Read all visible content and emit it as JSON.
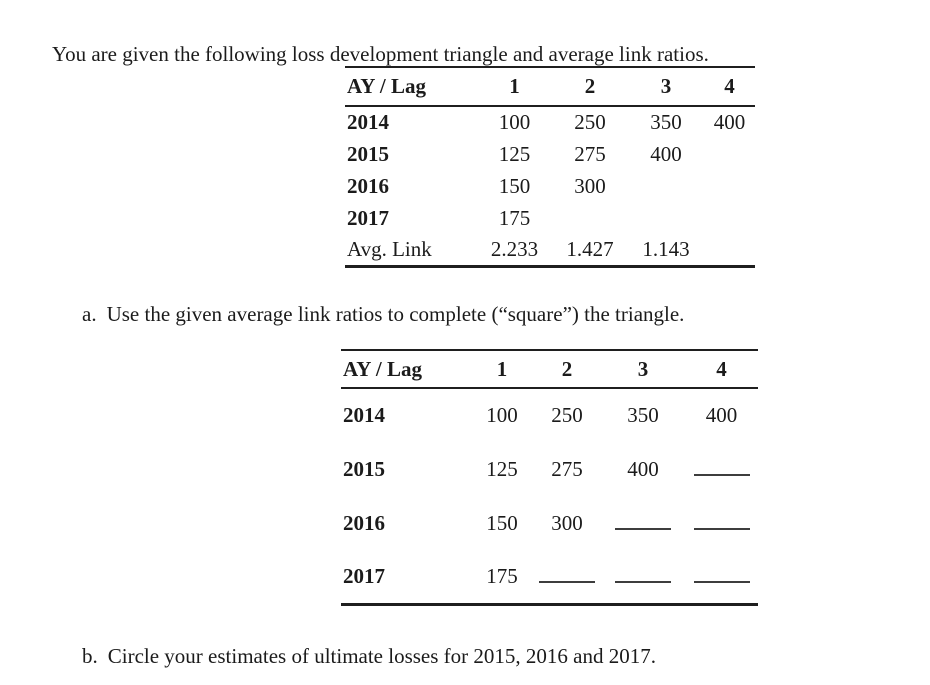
{
  "intro": "You are given the following loss development triangle and average link ratios.",
  "triangle_table": {
    "header": [
      "AY / Lag",
      "1",
      "2",
      "3",
      "4"
    ],
    "rows": [
      {
        "label": "2014",
        "bold": true,
        "cells": [
          "100",
          "250",
          "350",
          "400"
        ]
      },
      {
        "label": "2015",
        "bold": true,
        "cells": [
          "125",
          "275",
          "400",
          ""
        ]
      },
      {
        "label": "2016",
        "bold": true,
        "cells": [
          "150",
          "300",
          "",
          ""
        ]
      },
      {
        "label": "2017",
        "bold": true,
        "cells": [
          "175",
          "",
          "",
          ""
        ]
      },
      {
        "label": "Avg. Link",
        "bold": false,
        "cells": [
          "2.233",
          "1.427",
          "1.143",
          ""
        ]
      }
    ]
  },
  "part_a": {
    "marker": "a.",
    "text": "Use the given average link ratios to complete (“square”) the triangle."
  },
  "squared_table": {
    "header": [
      "AY / Lag",
      "1",
      "2",
      "3",
      "4"
    ],
    "rows": [
      {
        "label": "2014",
        "bold": true,
        "cells": [
          "100",
          "250",
          "350",
          "400"
        ]
      },
      {
        "label": "2015",
        "bold": true,
        "cells": [
          "125",
          "275",
          "400",
          {
            "blank": true
          }
        ]
      },
      {
        "label": "2016",
        "bold": true,
        "cells": [
          "150",
          "300",
          {
            "blank": true
          },
          {
            "blank": true
          }
        ]
      },
      {
        "label": "2017",
        "bold": true,
        "cells": [
          "175",
          {
            "blank": true
          },
          {
            "blank": true
          },
          {
            "blank": true
          }
        ]
      }
    ]
  },
  "part_b": {
    "marker": "b.",
    "text": "Circle your estimates of ultimate losses for 2015, 2016 and 2017."
  },
  "colors": {
    "text": "#1b1b1b",
    "rule": "#1f1f1f",
    "blank_line": "#3d3d3d",
    "background": "#ffffff"
  }
}
